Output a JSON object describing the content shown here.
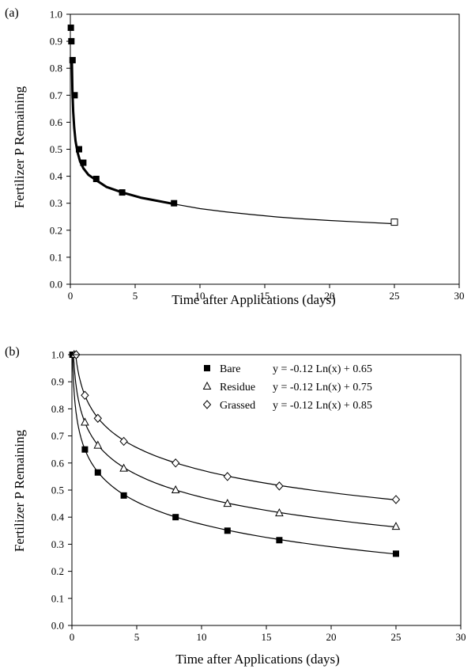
{
  "chart_data": [
    {
      "panel_label": "(a)",
      "type": "scatter",
      "xlabel": "Time after Applications (days)",
      "ylabel": "Fertilizer P Remaining",
      "xlim": [
        0,
        30
      ],
      "ylim": [
        0.0,
        1.0
      ],
      "xticks": [
        "0",
        "5",
        "10",
        "15",
        "20",
        "25",
        "30"
      ],
      "yticks": [
        "0.0",
        "0.1",
        "0.2",
        "0.3",
        "0.4",
        "0.5",
        "0.6",
        "0.7",
        "0.8",
        "0.9",
        "1.0"
      ],
      "series": [
        {
          "marker": "filled-square",
          "x": [
            0.04,
            0.08,
            0.17,
            0.33,
            0.67,
            1.0,
            2.0,
            4.0,
            8.0
          ],
          "y": [
            0.95,
            0.9,
            0.83,
            0.7,
            0.5,
            0.45,
            0.39,
            0.34,
            0.3
          ]
        },
        {
          "marker": "open-square",
          "x": [
            25
          ],
          "y": [
            0.23
          ]
        }
      ],
      "fit_curves": [
        {
          "x": [
            0.12,
            0.16,
            0.22,
            0.3,
            0.4,
            0.55,
            0.75,
            1.0,
            1.4,
            2.0,
            2.8,
            4.0,
            5.5,
            8.0
          ],
          "y": [
            0.82,
            0.72,
            0.64,
            0.58,
            0.53,
            0.49,
            0.455,
            0.43,
            0.405,
            0.385,
            0.36,
            0.34,
            0.32,
            0.297
          ],
          "weight": "bold"
        },
        {
          "x": [
            8.0,
            10,
            12,
            14,
            16,
            18,
            20,
            22,
            25
          ],
          "y": [
            0.297,
            0.28,
            0.268,
            0.258,
            0.249,
            0.242,
            0.236,
            0.231,
            0.224
          ],
          "weight": "thin"
        }
      ]
    },
    {
      "panel_label": "(b)",
      "type": "scatter",
      "xlabel": "Time after Applications (days)",
      "ylabel": "Fertilizer P Remaining",
      "xlim": [
        0,
        30
      ],
      "ylim": [
        0.0,
        1.0
      ],
      "xticks": [
        "0",
        "5",
        "10",
        "15",
        "20",
        "25",
        "30"
      ],
      "yticks": [
        "0.0",
        "0.1",
        "0.2",
        "0.3",
        "0.4",
        "0.5",
        "0.6",
        "0.7",
        "0.8",
        "0.9",
        "1.0"
      ],
      "legend_position": "top-right",
      "series": [
        {
          "name": "Bare",
          "equation": "y = -0.12 Ln(x) + 0.65",
          "marker": "filled-square",
          "coef": -0.12,
          "intercept": 0.65,
          "x": [
            0.04,
            1,
            2,
            4,
            8,
            12,
            16,
            25
          ],
          "y": [
            1.0,
            0.65,
            0.565,
            0.48,
            0.4,
            0.35,
            0.315,
            0.265
          ]
        },
        {
          "name": "Residue",
          "equation": "y = -0.12 Ln(x) + 0.75",
          "marker": "open-triangle",
          "coef": -0.12,
          "intercept": 0.75,
          "x": [
            0.17,
            1,
            2,
            4,
            8,
            12,
            16,
            25
          ],
          "y": [
            1.0,
            0.75,
            0.665,
            0.58,
            0.5,
            0.45,
            0.415,
            0.365
          ]
        },
        {
          "name": "Grassed",
          "equation": "y = -0.12 Ln(x) + 0.85",
          "marker": "open-diamond",
          "coef": -0.12,
          "intercept": 0.85,
          "x": [
            0.33,
            1,
            2,
            4,
            8,
            12,
            16,
            25
          ],
          "y": [
            1.0,
            0.85,
            0.765,
            0.68,
            0.6,
            0.55,
            0.515,
            0.465
          ]
        }
      ]
    }
  ]
}
